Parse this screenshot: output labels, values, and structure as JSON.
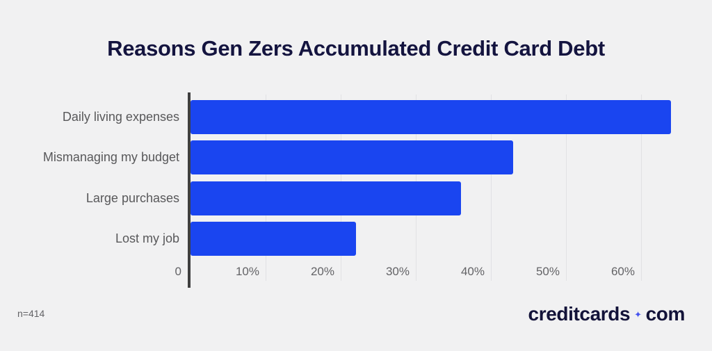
{
  "title": "Reasons Gen Zers Accumulated Credit Card Debt",
  "footer": {
    "sample_note": "n=414",
    "brand": {
      "part1": "creditcards",
      "separator_icon": "sparkle-diamond-icon",
      "separator_glyph": "✦",
      "part2": "com"
    }
  },
  "colors": {
    "background": "#f1f1f2",
    "bar": "#1a45f0",
    "title": "#14143f",
    "category_label": "#58585a",
    "tick_label": "#636366",
    "axis_line": "#3f3f3f",
    "gridline": "#e1e1e4",
    "brand_text": "#131339",
    "brand_accent": "#4553ef"
  },
  "chart_data": {
    "type": "bar",
    "orientation": "horizontal",
    "title": "Reasons Gen Zers Accumulated Credit Card Debt",
    "categories": [
      "Daily living expenses",
      "Mismanaging my budget",
      "Large purchases",
      "Lost my job"
    ],
    "values": [
      64,
      43,
      36,
      22
    ],
    "unit": "%",
    "x_ticks": [
      "0",
      "10%",
      "20%",
      "30%",
      "40%",
      "50%",
      "60%"
    ],
    "x_tick_values": [
      0,
      10,
      20,
      30,
      40,
      50,
      60
    ],
    "xlim": [
      0,
      65
    ],
    "grid": true,
    "legend": false,
    "sample_size_note": "n=414",
    "source_brand": "creditcards.com"
  }
}
